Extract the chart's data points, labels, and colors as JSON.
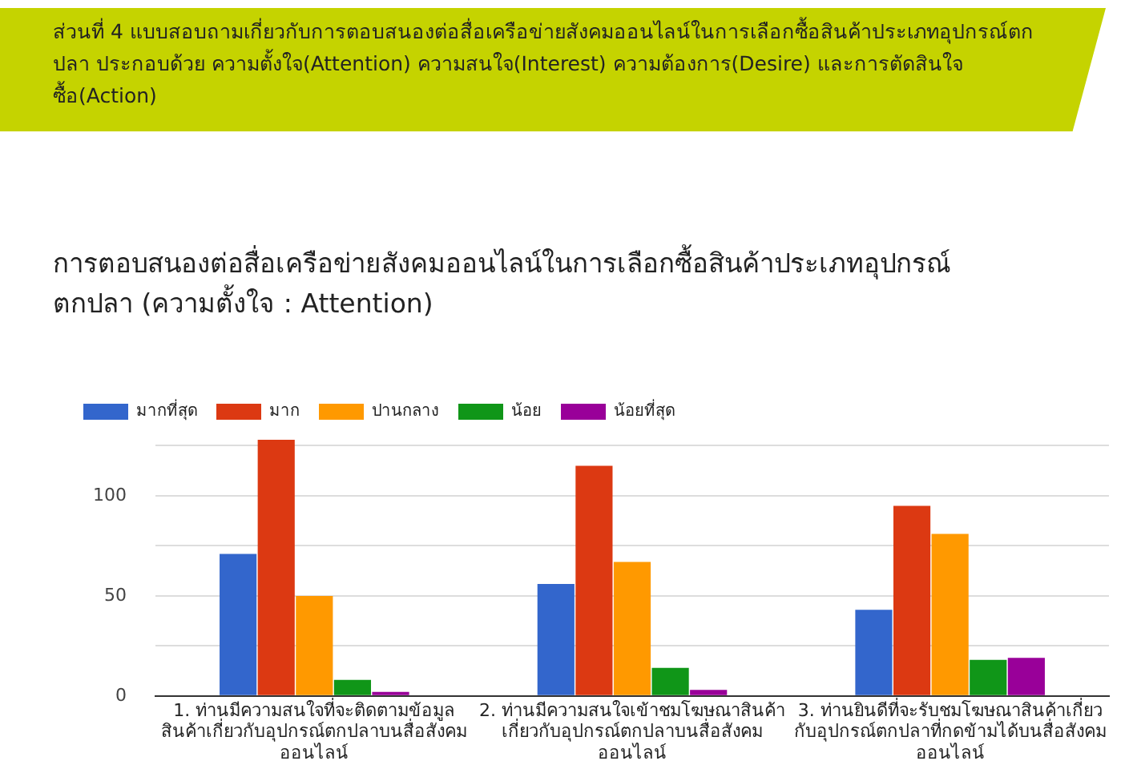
{
  "chart_data": {
    "type": "bar",
    "title": "การตอบสนองต่อสื่อเครือข่ายสังคมออนไลน์ในการเลือกซื้อสินค้าประเภทอุปกรณ์ตกปลา (ความตั้งใจ : Attention)",
    "annotations": [
      "ส่วนที่ 4 แบบสอบถามเกี่ยวกับการตอบสนองต่อสื่อเครือข่ายสังคมออนไลน์ในการเลือกซื้อสินค้าประเภทอุปกรณ์ตกปลา ประกอบด้วย ความตั้งใจ(Attention) ความสนใจ(Interest) ความต้องการ(Desire) และการตัดสินใจซื้อ(Action)"
    ],
    "categories": [
      "1. ท่านมีความสนใจที่จะติดตามข้อมูลสินค้าเกี่ยวกับอุปกรณ์ตกปลาบนสื่อสังคมออนไลน์",
      "2. ท่านมีความสนใจเข้าชมโฆษณาสินค้าเกี่ยวกับอุปกรณ์ตกปลาบนสื่อสังคมออนไลน์",
      "3. ท่านยินดีที่จะรับชมโฆษณาสินค้าเกี่ยวกับอุปกรณ์ตกปลาที่กดข้ามได้บนสื่อสังคมออนไลน์"
    ],
    "series": [
      {
        "name": "มากที่สุด",
        "color": "#3366cc",
        "values": [
          71,
          56,
          43
        ]
      },
      {
        "name": "มาก",
        "color": "#dc3912",
        "values": [
          128,
          115,
          95
        ]
      },
      {
        "name": "ปานกลาง",
        "color": "#ff9900",
        "values": [
          50,
          67,
          81
        ]
      },
      {
        "name": "น้อย",
        "color": "#109618",
        "values": [
          8,
          14,
          18
        ]
      },
      {
        "name": "น้อยที่สุด",
        "color": "#990099",
        "values": [
          2,
          3,
          19
        ]
      }
    ],
    "ylim": [
      0,
      130
    ],
    "yticks": [
      0,
      {
        "value": 25,
        "label": null
      },
      50,
      {
        "value": 75,
        "label": null
      },
      100,
      {
        "value": 125,
        "label": null
      }
    ],
    "grid": "y",
    "legend": "top left"
  }
}
